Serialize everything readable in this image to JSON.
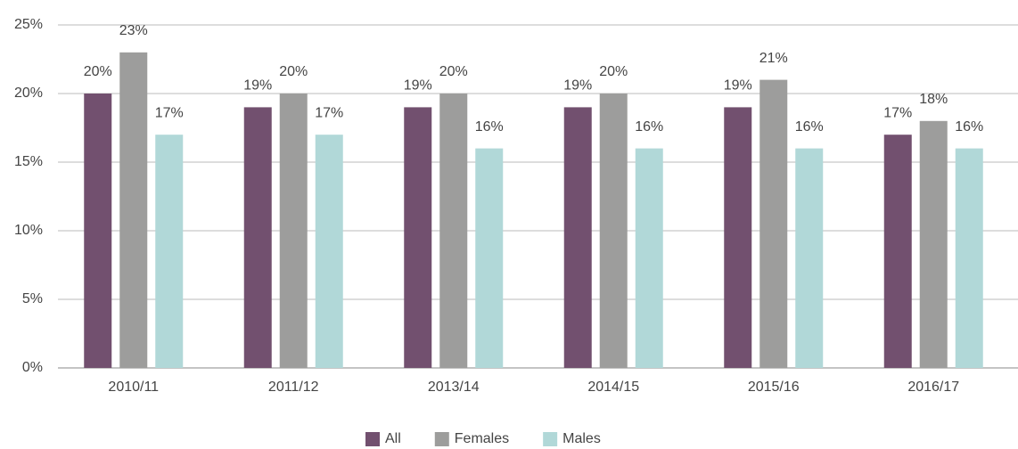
{
  "chart_data": {
    "type": "bar",
    "categories": [
      "2010/11",
      "2011/12",
      "2013/14",
      "2014/15",
      "2015/16",
      "2016/17"
    ],
    "series": [
      {
        "name": "All",
        "color": "#72506f",
        "values": [
          20,
          19,
          19,
          19,
          19,
          17
        ],
        "value_labels": [
          "20%",
          "19%",
          "19%",
          "19%",
          "19%",
          "17%"
        ]
      },
      {
        "name": "Females",
        "color": "#9d9d9c",
        "values": [
          23,
          20,
          20,
          20,
          21,
          18
        ],
        "value_labels": [
          "23%",
          "20%",
          "20%",
          "20%",
          "21%",
          "18%"
        ]
      },
      {
        "name": "Males",
        "color": "#b1d8d8",
        "values": [
          17,
          17,
          16,
          16,
          16,
          16
        ],
        "value_labels": [
          "17%",
          "17%",
          "16%",
          "16%",
          "16%",
          "16%"
        ]
      }
    ],
    "ylim": [
      0,
      25
    ],
    "yticks": [
      {
        "value": 0,
        "label": "0%"
      },
      {
        "value": 5,
        "label": "5%"
      },
      {
        "value": 10,
        "label": "10%"
      },
      {
        "value": 15,
        "label": "15%"
      },
      {
        "value": 20,
        "label": "20%"
      },
      {
        "value": 25,
        "label": "25%"
      }
    ],
    "grid": true,
    "legend": "bottom"
  }
}
